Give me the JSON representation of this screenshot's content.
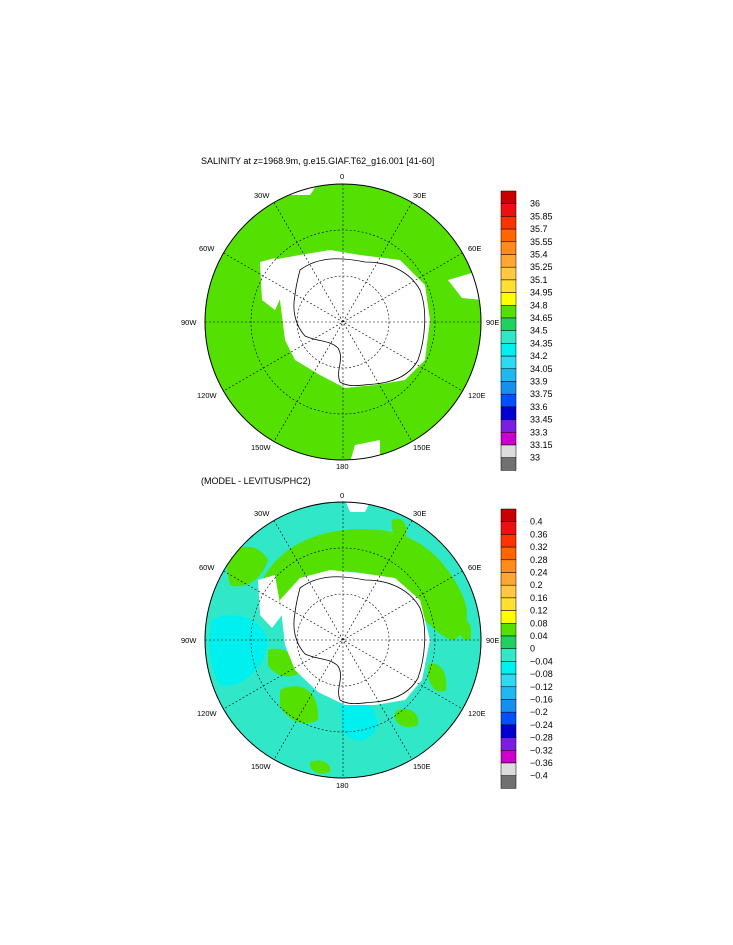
{
  "chart_data": [
    {
      "type": "heatmap",
      "title": "SALINITY at z=1968.9m, g.e15.GIAF.T62_g16.001 [41-60]",
      "projection": "south polar stereographic",
      "longitude_labels": [
        "0",
        "30E",
        "60E",
        "90E",
        "120E",
        "150E",
        "180",
        "150W",
        "120W",
        "90W",
        "60W",
        "30W"
      ],
      "colorbar": {
        "labels": [
          "36",
          "35.85",
          "35.7",
          "35.55",
          "35.4",
          "35.25",
          "35.1",
          "34.95",
          "34.8",
          "34.65",
          "34.5",
          "34.35",
          "34.2",
          "34.05",
          "33.9",
          "33.75",
          "33.6",
          "33.45",
          "33.3",
          "33.15",
          "33"
        ],
        "colors": [
          "#c80000",
          "#ee1010",
          "#ff3300",
          "#ff6600",
          "#ff8c1a",
          "#ffa733",
          "#ffc840",
          "#ffe030",
          "#ffff00",
          "#54e000",
          "#20d060",
          "#30e8c8",
          "#00f0f0",
          "#30d8f0",
          "#20b8f0",
          "#1490f0",
          "#0050ff",
          "#0000d0",
          "#7a1ee0",
          "#cc00cc",
          "#dcdcdc",
          "#707070"
        ]
      },
      "dominant_value_range": [
        34.65,
        34.8
      ]
    },
    {
      "type": "heatmap",
      "title": "(MODEL - LEVITUS/PHC2)",
      "projection": "south polar stereographic",
      "longitude_labels": [
        "0",
        "30E",
        "60E",
        "90E",
        "120E",
        "150E",
        "180",
        "150W",
        "120W",
        "90W",
        "60W",
        "30W"
      ],
      "colorbar": {
        "labels": [
          "0.4",
          "0.36",
          "0.32",
          "0.28",
          "0.24",
          "0.2",
          "0.16",
          "0.12",
          "0.08",
          "0.04",
          "0",
          "−0.04",
          "−0.08",
          "−0.12",
          "−0.16",
          "−0.2",
          "−0.24",
          "−0.28",
          "−0.32",
          "−0.36",
          "−0.4"
        ],
        "colors": [
          "#c80000",
          "#ee1010",
          "#ff3300",
          "#ff6600",
          "#ff8c1a",
          "#ffa733",
          "#ffc840",
          "#ffe030",
          "#ffff00",
          "#54e000",
          "#20d060",
          "#30e8c8",
          "#00f0f0",
          "#30d8f0",
          "#20b8f0",
          "#1490f0",
          "#0050ff",
          "#0000d0",
          "#7a1ee0",
          "#cc00cc",
          "#dcdcdc",
          "#707070"
        ]
      },
      "dominant_value_ranges": [
        [
          -0.04,
          0
        ],
        [
          0,
          0.04
        ]
      ]
    }
  ]
}
